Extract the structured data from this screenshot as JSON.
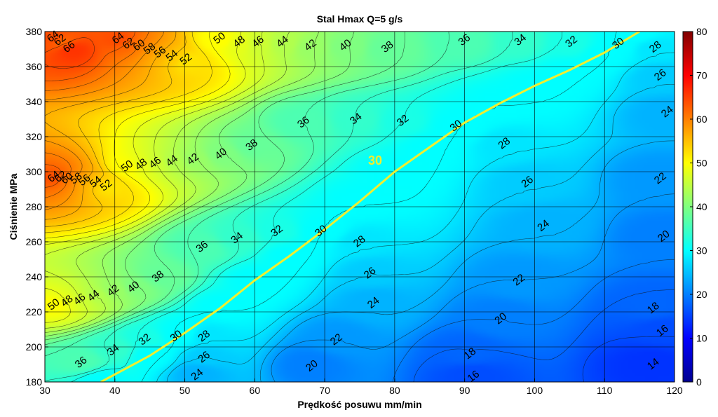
{
  "chart_data": {
    "type": "contour",
    "title": "Stal Hmax Q=5 g/s",
    "xlabel": "Prędkość posuwu mm/min",
    "ylabel": "Ciśnienie MPa",
    "xlim": [
      30,
      120
    ],
    "ylim": [
      180,
      380
    ],
    "x_ticks": [
      30,
      40,
      50,
      60,
      70,
      80,
      90,
      100,
      110,
      120
    ],
    "y_ticks": [
      180,
      200,
      220,
      240,
      260,
      280,
      300,
      320,
      340,
      360,
      380
    ],
    "grid": true,
    "colorbar": {
      "colormap": "jet",
      "range": [
        0,
        80
      ],
      "ticks": [
        0,
        10,
        20,
        30,
        40,
        50,
        60,
        70,
        80
      ]
    },
    "highlighted_contour": {
      "level": 30,
      "label": "30",
      "color": "#f2ee2e",
      "points": [
        [
          38,
          180
        ],
        [
          45,
          195
        ],
        [
          50,
          208
        ],
        [
          55,
          222
        ],
        [
          60,
          238
        ],
        [
          65,
          252
        ],
        [
          70,
          267
        ],
        [
          75,
          283
        ],
        [
          80,
          300
        ],
        [
          85,
          314
        ],
        [
          90,
          328
        ],
        [
          95,
          339
        ],
        [
          100,
          349
        ],
        [
          105,
          358
        ],
        [
          110,
          368
        ],
        [
          115,
          380
        ]
      ]
    },
    "contour_labels": [
      {
        "text": "64",
        "x": 31.2,
        "y": 377
      },
      {
        "text": "62",
        "x": 32.2,
        "y": 375
      },
      {
        "text": "66",
        "x": 33.5,
        "y": 371
      },
      {
        "text": "64",
        "x": 40.5,
        "y": 376
      },
      {
        "text": "62",
        "x": 42.0,
        "y": 373
      },
      {
        "text": "60",
        "x": 43.5,
        "y": 372
      },
      {
        "text": "58",
        "x": 45.0,
        "y": 370
      },
      {
        "text": "56",
        "x": 46.5,
        "y": 368
      },
      {
        "text": "54",
        "x": 48.2,
        "y": 366
      },
      {
        "text": "52",
        "x": 50.2,
        "y": 364
      },
      {
        "text": "50",
        "x": 55.0,
        "y": 376
      },
      {
        "text": "48",
        "x": 57.8,
        "y": 374
      },
      {
        "text": "46",
        "x": 60.5,
        "y": 374
      },
      {
        "text": "44",
        "x": 64.0,
        "y": 374
      },
      {
        "text": "42",
        "x": 68.0,
        "y": 372
      },
      {
        "text": "40",
        "x": 73.0,
        "y": 372
      },
      {
        "text": "38",
        "x": 79.0,
        "y": 371
      },
      {
        "text": "36",
        "x": 90.0,
        "y": 375
      },
      {
        "text": "34",
        "x": 98.0,
        "y": 375
      },
      {
        "text": "32",
        "x": 105.3,
        "y": 374
      },
      {
        "text": "30",
        "x": 112.0,
        "y": 373
      },
      {
        "text": "28",
        "x": 117.3,
        "y": 371
      },
      {
        "text": "26",
        "x": 118.0,
        "y": 355
      },
      {
        "text": "24",
        "x": 119.0,
        "y": 334
      },
      {
        "text": "22",
        "x": 118.0,
        "y": 296
      },
      {
        "text": "20",
        "x": 118.5,
        "y": 263
      },
      {
        "text": "18",
        "x": 117.0,
        "y": 222
      },
      {
        "text": "16",
        "x": 118.3,
        "y": 209
      },
      {
        "text": "14",
        "x": 117.0,
        "y": 190
      },
      {
        "text": "36",
        "x": 67.0,
        "y": 328
      },
      {
        "text": "34",
        "x": 74.5,
        "y": 330
      },
      {
        "text": "32",
        "x": 81.2,
        "y": 329
      },
      {
        "text": "30",
        "x": 88.8,
        "y": 326
      },
      {
        "text": "28",
        "x": 95.7,
        "y": 316
      },
      {
        "text": "26",
        "x": 99.0,
        "y": 294
      },
      {
        "text": "24",
        "x": 101.3,
        "y": 269
      },
      {
        "text": "22",
        "x": 97.8,
        "y": 238
      },
      {
        "text": "20",
        "x": 95.2,
        "y": 216
      },
      {
        "text": "18",
        "x": 90.8,
        "y": 196
      },
      {
        "text": "16",
        "x": 91.3,
        "y": 183
      },
      {
        "text": "50",
        "x": 41.8,
        "y": 303
      },
      {
        "text": "48",
        "x": 43.8,
        "y": 304
      },
      {
        "text": "46",
        "x": 45.8,
        "y": 305
      },
      {
        "text": "44",
        "x": 48.2,
        "y": 306
      },
      {
        "text": "42",
        "x": 51.2,
        "y": 307
      },
      {
        "text": "40",
        "x": 55.2,
        "y": 310
      },
      {
        "text": "38",
        "x": 59.6,
        "y": 315
      },
      {
        "text": "64",
        "x": 31.3,
        "y": 297
      },
      {
        "text": "62",
        "x": 32.3,
        "y": 297
      },
      {
        "text": "60",
        "x": 33.2,
        "y": 296
      },
      {
        "text": "58",
        "x": 34.5,
        "y": 296
      },
      {
        "text": "56",
        "x": 35.7,
        "y": 295
      },
      {
        "text": "54",
        "x": 37.3,
        "y": 294
      },
      {
        "text": "52",
        "x": 38.8,
        "y": 292
      },
      {
        "text": "36",
        "x": 52.5,
        "y": 257
      },
      {
        "text": "34",
        "x": 57.5,
        "y": 262
      },
      {
        "text": "32",
        "x": 63.2,
        "y": 266
      },
      {
        "text": "30",
        "x": 69.5,
        "y": 266
      },
      {
        "text": "28",
        "x": 75.0,
        "y": 260
      },
      {
        "text": "26",
        "x": 76.5,
        "y": 242
      },
      {
        "text": "24",
        "x": 77.0,
        "y": 225
      },
      {
        "text": "22",
        "x": 71.7,
        "y": 204
      },
      {
        "text": "20",
        "x": 68.2,
        "y": 189
      },
      {
        "text": "50",
        "x": 31.3,
        "y": 224
      },
      {
        "text": "48",
        "x": 33.2,
        "y": 226
      },
      {
        "text": "46",
        "x": 35.0,
        "y": 227
      },
      {
        "text": "44",
        "x": 37.0,
        "y": 229
      },
      {
        "text": "42",
        "x": 39.8,
        "y": 232
      },
      {
        "text": "40",
        "x": 42.7,
        "y": 234
      },
      {
        "text": "38",
        "x": 46.2,
        "y": 240
      },
      {
        "text": "36",
        "x": 35.2,
        "y": 191
      },
      {
        "text": "34",
        "x": 39.8,
        "y": 198
      },
      {
        "text": "32",
        "x": 44.3,
        "y": 204
      },
      {
        "text": "30",
        "x": 48.8,
        "y": 206
      },
      {
        "text": "28",
        "x": 52.8,
        "y": 206
      },
      {
        "text": "26",
        "x": 52.8,
        "y": 194
      },
      {
        "text": "24",
        "x": 51.8,
        "y": 184
      }
    ]
  }
}
